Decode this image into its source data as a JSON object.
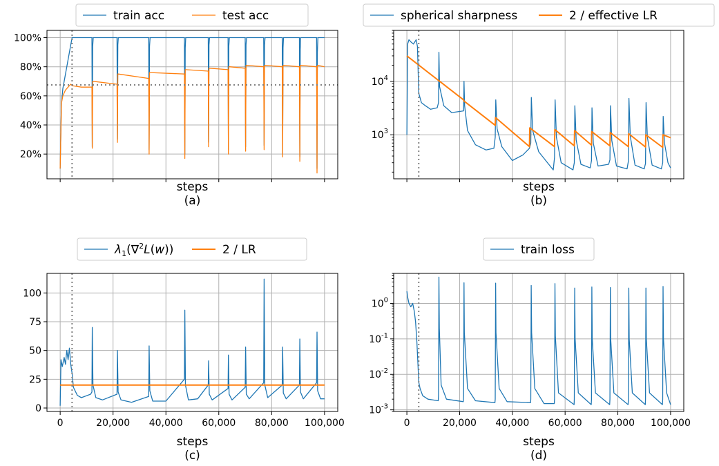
{
  "chart_data": [
    {
      "id": "a",
      "type": "line",
      "xlabel": "steps",
      "sublabel": "(a)",
      "xlim": [
        -5000,
        105000
      ],
      "ylim": [
        3,
        105
      ],
      "xticks": [
        0,
        20000,
        40000,
        60000,
        80000,
        100000
      ],
      "xtick_labels": [],
      "yticks": [
        20,
        40,
        60,
        80,
        100
      ],
      "ytick_labels": [
        "20%",
        "40%",
        "60%",
        "80%",
        "100%"
      ],
      "legend": [
        "train acc",
        "test acc"
      ],
      "vline_x": 4500,
      "hline_y": 67.5,
      "series": [
        {
          "name": "train acc",
          "color": "#1f77b4",
          "width": 1.3,
          "x": [
            0,
            500,
            1000,
            2000,
            3000,
            4000,
            4500,
            5000,
            12000,
            12150,
            12300,
            12500,
            21500,
            21650,
            21800,
            22000,
            33500,
            33650,
            33800,
            34000,
            47000,
            47150,
            47300,
            47500,
            56000,
            56150,
            56300,
            56500,
            63500,
            63650,
            63800,
            64000,
            70000,
            70150,
            70300,
            70500,
            77000,
            77150,
            77300,
            77500,
            84000,
            84150,
            84300,
            84500,
            90500,
            90650,
            90800,
            91000,
            97000,
            97150,
            97300,
            97500,
            100000
          ],
          "y": [
            10,
            55,
            65,
            75,
            85,
            95,
            100,
            100,
            100,
            25,
            94,
            100,
            100,
            30,
            95,
            100,
            100,
            23,
            94,
            100,
            100,
            20,
            93,
            100,
            100,
            28,
            95,
            100,
            100,
            23,
            94,
            100,
            100,
            25,
            95,
            100,
            100,
            26,
            95,
            100,
            100,
            20,
            93,
            100,
            100,
            18,
            92,
            100,
            100,
            10,
            90,
            100,
            100
          ]
        },
        {
          "name": "test acc",
          "color": "#ff7f0e",
          "width": 1.3,
          "x": [
            0,
            500,
            1000,
            2000,
            3000,
            4000,
            4500,
            8000,
            12000,
            12150,
            12300,
            12500,
            21500,
            21650,
            21800,
            22000,
            33500,
            33650,
            33800,
            34000,
            47000,
            47150,
            47300,
            47500,
            56000,
            56150,
            56300,
            56500,
            63500,
            63650,
            63800,
            64000,
            70000,
            70150,
            70300,
            70500,
            77000,
            77150,
            77300,
            77500,
            84000,
            84150,
            84300,
            84500,
            90500,
            90650,
            90800,
            91000,
            97000,
            97150,
            97300,
            97500,
            100000
          ],
          "y": [
            10,
            55,
            60,
            64,
            66,
            68,
            67,
            66,
            66,
            24,
            70,
            70,
            68,
            28,
            75,
            75,
            72,
            20,
            76,
            76,
            75,
            17,
            78,
            78,
            77,
            25,
            79,
            79,
            78,
            20,
            80,
            80,
            79,
            22,
            81,
            81,
            80,
            23,
            81,
            81,
            80,
            18,
            81,
            81,
            80,
            15,
            81,
            81,
            80,
            7,
            81,
            81,
            80
          ]
        }
      ]
    },
    {
      "id": "b",
      "type": "line",
      "xlabel": "steps",
      "sublabel": "(b)",
      "yscale": "log",
      "xlim": [
        -5000,
        105000
      ],
      "ylim": [
        150,
        90000
      ],
      "xticks": [
        0,
        20000,
        40000,
        60000,
        80000,
        100000
      ],
      "xtick_labels": [],
      "yticks": [
        1000,
        10000
      ],
      "ytick_labels": [
        "10^3",
        "10^4"
      ],
      "legend": [
        "spherical sharpness",
        "2 / effective LR"
      ],
      "vline_x": 4500,
      "series": [
        {
          "name": "spherical sharpness",
          "color": "#1f77b4",
          "width": 1.3,
          "x": [
            0,
            300,
            800,
            1500,
            2500,
            3500,
            4000,
            4500,
            5500,
            7000,
            9000,
            11500,
            12000,
            12150,
            12400,
            14000,
            17000,
            21500,
            21650,
            21900,
            23000,
            26000,
            30000,
            33000,
            33500,
            33700,
            34200,
            36000,
            40000,
            44000,
            46500,
            47000,
            47200,
            47700,
            50000,
            55500,
            56000,
            56200,
            56700,
            58500,
            63000,
            63500,
            63700,
            64200,
            66000,
            69500,
            70000,
            70200,
            70700,
            72500,
            76500,
            77000,
            77200,
            77700,
            79500,
            83500,
            84000,
            84200,
            84700,
            86500,
            90000,
            90500,
            90700,
            91200,
            93000,
            96500,
            97000,
            97200,
            97700,
            99000,
            100000
          ],
          "y": [
            1000,
            50000,
            60000,
            55000,
            50000,
            60000,
            45000,
            6000,
            4000,
            3500,
            3000,
            3200,
            4000,
            35000,
            8000,
            3500,
            2600,
            2800,
            10000,
            3500,
            1200,
            650,
            520,
            560,
            900,
            4500,
            1300,
            600,
            330,
            420,
            560,
            700,
            5000,
            1200,
            480,
            220,
            380,
            4500,
            900,
            300,
            220,
            300,
            3500,
            800,
            280,
            240,
            330,
            3200,
            700,
            260,
            280,
            340,
            3500,
            780,
            260,
            230,
            320,
            4800,
            950,
            270,
            230,
            290,
            4000,
            900,
            270,
            230,
            300,
            2200,
            700,
            300,
            240
          ]
        },
        {
          "name": "2 / effective LR",
          "color": "#ff7f0e",
          "width": 2,
          "x": [
            0,
            21500,
            21600,
            33500,
            33600,
            46500,
            46600,
            56000,
            56100,
            63500,
            63600,
            70000,
            70100,
            77000,
            77100,
            84000,
            84100,
            90500,
            90600,
            97000,
            97100,
            100000
          ],
          "y": [
            30000,
            4500,
            4300,
            1500,
            2100,
            600,
            1350,
            600,
            1250,
            620,
            1200,
            640,
            1150,
            620,
            1100,
            600,
            1050,
            590,
            1000,
            580,
            1000,
            880
          ]
        }
      ]
    },
    {
      "id": "c",
      "type": "line",
      "xlabel": "steps",
      "sublabel": "(c)",
      "xlim": [
        -5000,
        105000
      ],
      "ylim": [
        -3,
        117
      ],
      "xticks": [
        0,
        20000,
        40000,
        60000,
        80000,
        100000
      ],
      "xtick_labels": [
        "0",
        "20,000",
        "40,000",
        "60,000",
        "80,000",
        "100,000"
      ],
      "yticks": [
        0,
        25,
        50,
        75,
        100
      ],
      "ytick_labels": [
        "0",
        "25",
        "50",
        "75",
        "100"
      ],
      "legend": [
        "λ1(∇2L(w))",
        "2 / LR"
      ],
      "vline_x": 4500,
      "series": [
        {
          "name": "λ1(∇2L(w))",
          "color": "#1f77b4",
          "width": 1.3,
          "x": [
            0,
            300,
            800,
            1500,
            2000,
            2500,
            3000,
            3500,
            4000,
            4500,
            5000,
            6500,
            8000,
            11500,
            12000,
            12150,
            12400,
            13500,
            16000,
            21500,
            21650,
            21900,
            23000,
            27000,
            33500,
            33650,
            33900,
            35000,
            40000,
            47000,
            47150,
            47400,
            48500,
            52000,
            56000,
            56150,
            56400,
            57500,
            63500,
            63650,
            63900,
            65000,
            70000,
            70150,
            70400,
            71500,
            77000,
            77150,
            77400,
            78500,
            84000,
            84150,
            84400,
            85500,
            90500,
            90650,
            90900,
            92000,
            97000,
            97150,
            97400,
            98500,
            100000
          ],
          "y": [
            2,
            42,
            36,
            44,
            38,
            50,
            42,
            52,
            38,
            30,
            18,
            11,
            9,
            12,
            14,
            70,
            20,
            9,
            7,
            12,
            50,
            14,
            7,
            5,
            10,
            54,
            15,
            6,
            6,
            25,
            85,
            20,
            7,
            8,
            20,
            41,
            12,
            7,
            17,
            46,
            12,
            7,
            18,
            53,
            12,
            8,
            22,
            112,
            20,
            9,
            20,
            53,
            13,
            8,
            20,
            60,
            14,
            8,
            22,
            66,
            15,
            8,
            8
          ]
        },
        {
          "name": "2 / LR",
          "color": "#ff7f0e",
          "width": 2,
          "x": [
            0,
            100000
          ],
          "y": [
            20,
            20
          ]
        }
      ]
    },
    {
      "id": "d",
      "type": "line",
      "xlabel": "steps",
      "sublabel": "(d)",
      "yscale": "log",
      "xlim": [
        -5000,
        105000
      ],
      "ylim": [
        0.0009,
        7
      ],
      "xticks": [
        0,
        20000,
        40000,
        60000,
        80000,
        100000
      ],
      "xtick_labels": [
        "0",
        "20,000",
        "40,000",
        "60,000",
        "80,000",
        "100,000"
      ],
      "yticks": [
        0.001,
        0.01,
        0.1,
        1
      ],
      "ytick_labels": [
        "10^-3",
        "10^-2",
        "10^-1",
        "10^0"
      ],
      "legend": [
        "train loss"
      ],
      "vline_x": 4500,
      "series": [
        {
          "name": "train loss",
          "color": "#1f77b4",
          "width": 1.3,
          "x": [
            0,
            300,
            800,
            1500,
            2200,
            2800,
            3300,
            3800,
            4200,
            4500,
            5000,
            6000,
            8000,
            11900,
            12000,
            12150,
            12300,
            13000,
            15000,
            21400,
            21500,
            21650,
            21800,
            23000,
            26000,
            33400,
            33500,
            33650,
            33800,
            35000,
            38000,
            46900,
            47000,
            47150,
            47300,
            48500,
            52000,
            55900,
            56000,
            56150,
            56300,
            57500,
            63400,
            63500,
            63650,
            63800,
            65000,
            69900,
            70000,
            70150,
            70300,
            71500,
            76900,
            77000,
            77150,
            77300,
            78500,
            83900,
            84000,
            84150,
            84300,
            85500,
            90400,
            90500,
            90650,
            90800,
            92000,
            96900,
            97000,
            97150,
            97300,
            98500,
            100000
          ],
          "y": [
            2.2,
            1.5,
            1.0,
            0.8,
            1.0,
            0.6,
            0.3,
            0.08,
            0.02,
            0.006,
            0.004,
            0.0025,
            0.002,
            0.0018,
            0.0025,
            5.5,
            0.2,
            0.005,
            0.002,
            0.0017,
            0.0025,
            3.8,
            0.15,
            0.004,
            0.0018,
            0.0016,
            0.002,
            3.7,
            0.15,
            0.004,
            0.0017,
            0.0016,
            0.002,
            3.2,
            0.15,
            0.004,
            0.0015,
            0.0015,
            0.002,
            3.6,
            0.12,
            0.003,
            0.0014,
            0.002,
            2.7,
            0.1,
            0.003,
            0.0014,
            0.002,
            2.9,
            0.1,
            0.003,
            0.0014,
            0.002,
            2.8,
            0.1,
            0.003,
            0.0014,
            0.002,
            2.7,
            0.1,
            0.003,
            0.0014,
            0.002,
            2.7,
            0.1,
            0.003,
            0.0014,
            0.002,
            3.0,
            0.1,
            0.003,
            0.0014
          ]
        }
      ]
    }
  ]
}
